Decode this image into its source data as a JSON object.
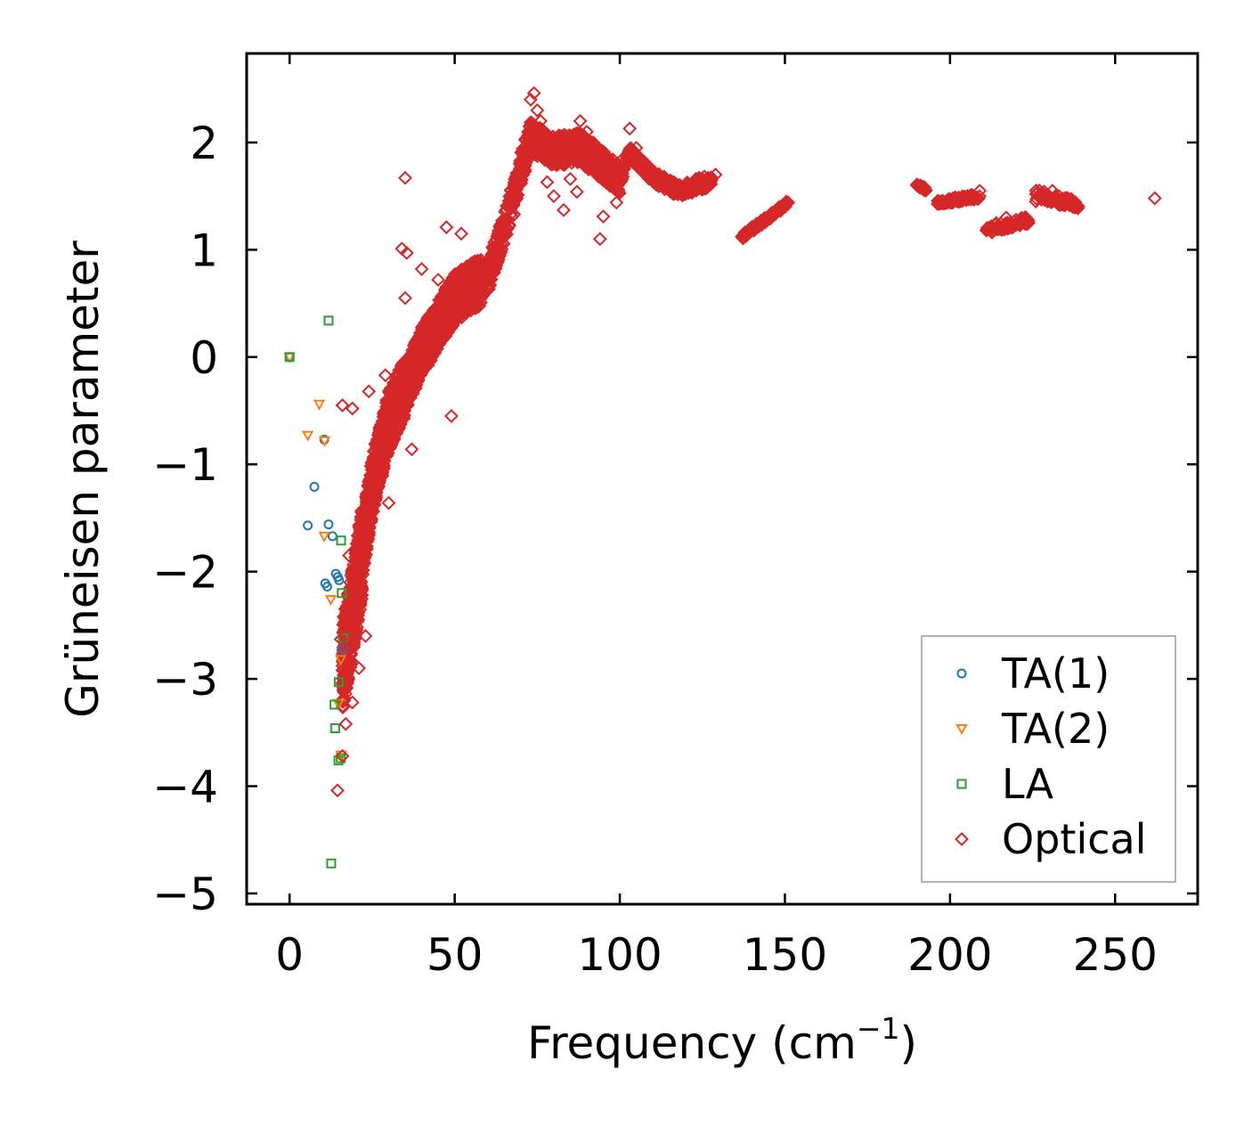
{
  "chart_data": {
    "type": "scatter",
    "title": "",
    "xlabel": "Frequency (cm",
    "xlabel_superscript": "−1",
    "xlabel_suffix": ")",
    "ylabel": "Grüneisen parameter",
    "xlim": [
      -13,
      275
    ],
    "ylim": [
      -5.1,
      2.83
    ],
    "xticks": [
      0,
      50,
      100,
      150,
      200,
      250
    ],
    "yticks": [
      2,
      1,
      0,
      -1,
      -2,
      -3,
      -4,
      -5
    ],
    "ytick_labels": [
      "2",
      "1",
      "0",
      "−1",
      "−2",
      "−3",
      "−4",
      "−5"
    ],
    "legend_position": "lower-right",
    "series": [
      {
        "name": "TA(1)",
        "marker": "circle",
        "color": "#1f77b4",
        "points": [
          [
            0,
            0
          ],
          [
            10.5,
            -0.77
          ],
          [
            7.5,
            -1.21
          ],
          [
            5.5,
            -1.57
          ],
          [
            11.8,
            -1.56
          ],
          [
            13,
            -1.67
          ],
          [
            14,
            -2.02
          ],
          [
            14.6,
            -2.05
          ],
          [
            10.8,
            -2.11
          ],
          [
            11.4,
            -2.14
          ],
          [
            15,
            -2.08
          ],
          [
            16.2,
            -2.72
          ]
        ]
      },
      {
        "name": "TA(2)",
        "marker": "triangle",
        "color": "#ff7f0e",
        "points": [
          [
            0,
            0
          ],
          [
            9,
            -0.44
          ],
          [
            5.5,
            -0.73
          ],
          [
            10.6,
            -0.78
          ],
          [
            10.5,
            -1.67
          ],
          [
            12.5,
            -2.26
          ],
          [
            15.5,
            -2.82
          ],
          [
            14.8,
            -3.23
          ],
          [
            15.6,
            -3.71
          ]
        ]
      },
      {
        "name": "LA",
        "marker": "square",
        "color": "#2ca02c",
        "points": [
          [
            0,
            0
          ],
          [
            11.8,
            0.34
          ],
          [
            15.6,
            -1.71
          ],
          [
            15.8,
            -2.2
          ],
          [
            16.2,
            -2.62
          ],
          [
            14.9,
            -3.03
          ],
          [
            13.6,
            -3.24
          ],
          [
            13.8,
            -3.46
          ],
          [
            14.8,
            -3.76
          ],
          [
            15.5,
            -3.74
          ],
          [
            12.6,
            -4.72
          ]
        ]
      },
      {
        "name": "Optical",
        "marker": "diamond",
        "color": "#d62728",
        "points": [
          [
            35,
            1.67
          ],
          [
            16,
            -0.45
          ],
          [
            19,
            -0.48
          ],
          [
            17,
            -3.42
          ],
          [
            19,
            -3.22
          ],
          [
            14.5,
            -4.04
          ],
          [
            16,
            -3.72
          ],
          [
            21,
            -2.9
          ],
          [
            49,
            -0.55
          ],
          [
            47.5,
            1.21
          ],
          [
            34,
            1.01
          ],
          [
            35.5,
            0.97
          ],
          [
            94,
            1.1
          ],
          [
            95,
            1.31
          ],
          [
            80,
            1.5
          ],
          [
            83,
            1.37
          ],
          [
            87,
            1.54
          ],
          [
            99,
            1.44
          ],
          [
            57,
            0.88
          ],
          [
            61,
            0.81
          ],
          [
            40,
            0.82
          ],
          [
            45,
            0.72
          ],
          [
            24,
            -0.32
          ],
          [
            29,
            -0.17
          ],
          [
            32,
            -0.48
          ],
          [
            37,
            -0.86
          ],
          [
            30,
            -1.36
          ],
          [
            18,
            -1.85
          ],
          [
            20,
            -2.25
          ],
          [
            23,
            -2.6
          ],
          [
            18,
            -2.7
          ],
          [
            15.5,
            -2.63
          ],
          [
            28,
            -0.9
          ],
          [
            35,
            0.55
          ],
          [
            52,
            1.15
          ],
          [
            66,
            1.28
          ],
          [
            68,
            1.33
          ],
          [
            70,
            1.72
          ],
          [
            71,
            1.85
          ],
          [
            73,
            2.4
          ],
          [
            74,
            2.46
          ],
          [
            75,
            2.3
          ],
          [
            76,
            2.2
          ],
          [
            78,
            1.63
          ],
          [
            82,
            1.9
          ],
          [
            85,
            1.66
          ],
          [
            88,
            2.2
          ],
          [
            90,
            2.1
          ],
          [
            92,
            2.0
          ],
          [
            94,
            1.88
          ],
          [
            96,
            1.65
          ],
          [
            101,
            1.85
          ],
          [
            103,
            2.13
          ],
          [
            105,
            1.95
          ],
          [
            108,
            1.75
          ],
          [
            111,
            1.68
          ],
          [
            114,
            1.58
          ],
          [
            118,
            1.55
          ],
          [
            122,
            1.57
          ],
          [
            126,
            1.65
          ],
          [
            129,
            1.7
          ],
          [
            137,
            1.12
          ],
          [
            140,
            1.18
          ],
          [
            143,
            1.25
          ],
          [
            146,
            1.33
          ],
          [
            149,
            1.4
          ],
          [
            151,
            1.44
          ],
          [
            190,
            1.6
          ],
          [
            192,
            1.57
          ],
          [
            197,
            1.45
          ],
          [
            200,
            1.44
          ],
          [
            203,
            1.45
          ],
          [
            206,
            1.48
          ],
          [
            209,
            1.55
          ],
          [
            211,
            1.18
          ],
          [
            214,
            1.25
          ],
          [
            217,
            1.3
          ],
          [
            220,
            1.28
          ],
          [
            223,
            1.26
          ],
          [
            226,
            1.45
          ],
          [
            229,
            1.5
          ],
          [
            231,
            1.55
          ],
          [
            233,
            1.5
          ],
          [
            235,
            1.43
          ],
          [
            238,
            1.41
          ],
          [
            262,
            1.48
          ]
        ]
      }
    ]
  }
}
